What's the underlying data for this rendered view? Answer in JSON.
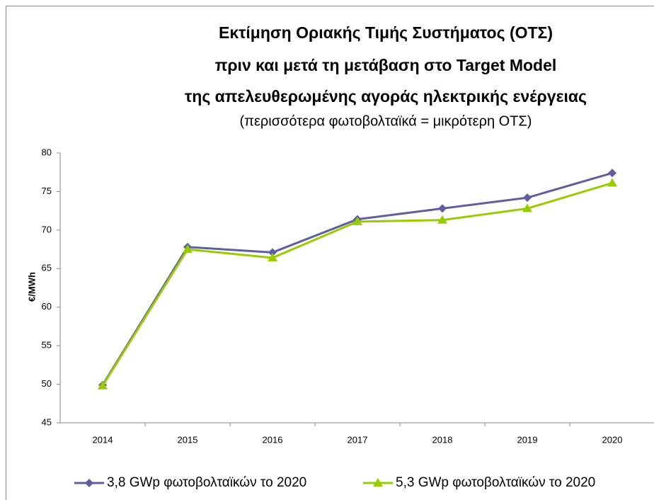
{
  "chart_data": {
    "type": "line",
    "title": [
      "Εκτίμηση Οριακής Τιμής Συστήματος (ΟΤΣ)",
      "πριν και μετά τη μετάβαση στο Target Model",
      "της απελευθερωμένης αγοράς ηλεκτρικής ενέργειας"
    ],
    "subtitle": "(περισσότερα φωτοβολταϊκά = μικρότερη ΟΤΣ)",
    "y_label": "€/MWh",
    "categories": [
      "2014",
      "2015",
      "2016",
      "2017",
      "2018",
      "2019",
      "2020"
    ],
    "series": [
      {
        "name": "3,8 GWp φωτοβολταϊκών το 2020",
        "color": "#5f5f9f",
        "marker": "diamond",
        "values": [
          49.9,
          67.8,
          67.1,
          71.4,
          72.8,
          74.2,
          77.4
        ]
      },
      {
        "name": "5,3 GWp φωτοβολταϊκών το 2020",
        "color": "#99cc00",
        "marker": "triangle",
        "values": [
          49.8,
          67.5,
          66.4,
          71.1,
          71.3,
          72.8,
          76.1
        ]
      }
    ],
    "ylim": [
      45,
      80
    ],
    "yticks": [
      45,
      50,
      55,
      60,
      65,
      70,
      75,
      80
    ]
  }
}
